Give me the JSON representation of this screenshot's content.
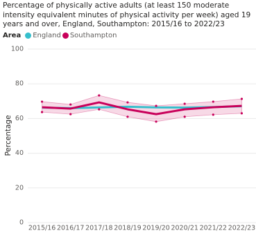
{
  "chart_data": {
    "type": "line",
    "title": "Percentage of physically active adults (at least 150 moderate intensity equivalent minutes of physical activity per week) aged 19 years and over, England, Southampton: 2015/16 to 2022/23",
    "legend_title": "Area",
    "y_label": "Percentage",
    "categories": [
      "2015/16",
      "2016/17",
      "2017/18",
      "2018/19",
      "2019/20",
      "2020/21",
      "2021/22",
      "2022/23"
    ],
    "series": [
      {
        "name": "England",
        "color": "#36bfcc",
        "values": [
          66.3,
          66.0,
          66.4,
          66.8,
          66.4,
          66.3,
          66.6,
          67.1
        ]
      },
      {
        "name": "Southampton",
        "color": "#c8005a",
        "values": [
          66.5,
          65.7,
          69.3,
          65.3,
          62.5,
          65.3,
          66.5,
          67.3
        ],
        "ci_lower": [
          63.7,
          62.5,
          65.3,
          61.0,
          58.2,
          61.0,
          62.2,
          63.0
        ],
        "ci_upper": [
          69.7,
          68.1,
          73.3,
          69.3,
          67.3,
          68.5,
          69.7,
          71.3
        ]
      }
    ],
    "ylim": [
      0,
      100
    ],
    "yticks": [
      0,
      20,
      40,
      60,
      80,
      100
    ],
    "grid": true
  }
}
